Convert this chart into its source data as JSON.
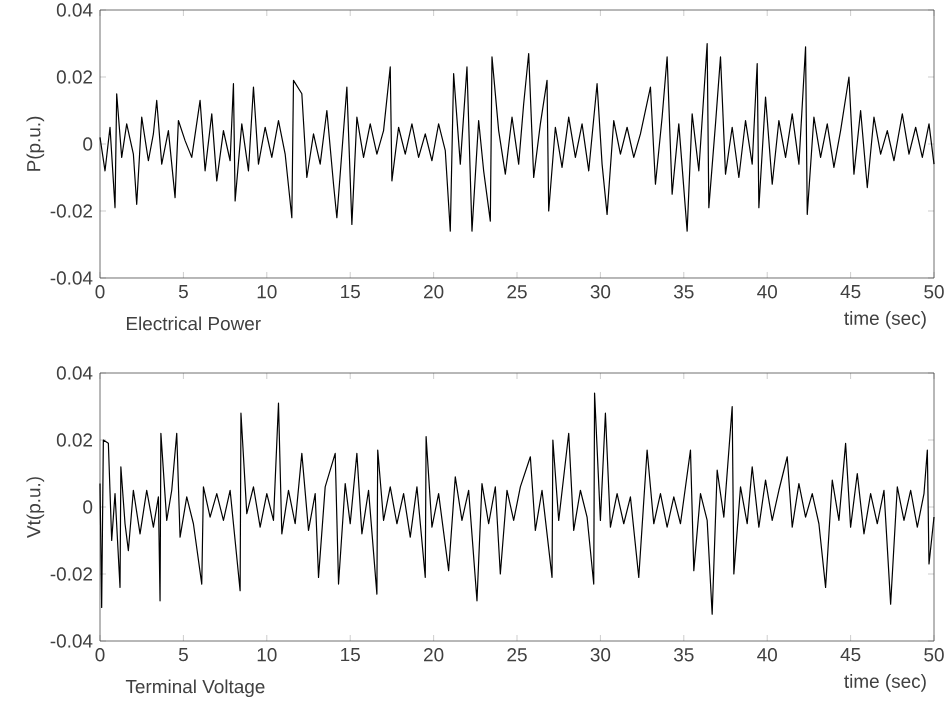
{
  "chart_data": [
    {
      "type": "line",
      "ylabel": "P(p.u.)",
      "xlabel": "time (sec)",
      "annotations": [
        "Electrical Power"
      ],
      "xlim": [
        0,
        50
      ],
      "ylim": [
        -0.04,
        0.04
      ],
      "xticks": [
        0,
        5,
        10,
        15,
        20,
        25,
        30,
        35,
        40,
        45,
        50
      ],
      "yticks": [
        -0.04,
        -0.02,
        0,
        0.02,
        0.04
      ],
      "series": [
        {
          "color": "#000000",
          "x": [
            0,
            0.3,
            0.6,
            0.9,
            1.0,
            1.3,
            1.6,
            2.0,
            2.2,
            2.5,
            2.9,
            3.2,
            3.4,
            3.7,
            4.1,
            4.5,
            4.7,
            5.1,
            5.5,
            6.0,
            6.3,
            6.7,
            7.0,
            7.4,
            7.8,
            8.0,
            8.1,
            8.5,
            8.9,
            9.2,
            9.5,
            9.9,
            10.3,
            10.7,
            11.1,
            11.5,
            11.6,
            12.1,
            12.4,
            12.8,
            13.2,
            13.6,
            14.0,
            14.2,
            14.8,
            15.1,
            15.4,
            15.8,
            16.2,
            16.6,
            17.0,
            17.4,
            17.5,
            17.9,
            18.3,
            18.7,
            19.1,
            19.5,
            19.9,
            20.3,
            20.7,
            21.0,
            21.2,
            21.6,
            22.0,
            22.3,
            22.7,
            23.0,
            23.4,
            23.5,
            23.9,
            24.3,
            24.7,
            25.1,
            25.4,
            25.7,
            26.0,
            26.4,
            26.8,
            26.9,
            27.3,
            27.7,
            28.1,
            28.5,
            28.9,
            29.3,
            29.8,
            30.1,
            30.4,
            30.8,
            31.2,
            31.6,
            32.0,
            32.4,
            33.0,
            33.3,
            33.7,
            34.0,
            34.3,
            34.7,
            35.2,
            35.5,
            35.9,
            36.4,
            36.5,
            36.9,
            37.2,
            37.5,
            37.9,
            38.3,
            38.7,
            39.1,
            39.4,
            39.5,
            39.9,
            40.3,
            40.7,
            41.1,
            41.5,
            41.9,
            42.3,
            42.4,
            42.8,
            43.2,
            43.6,
            44.0,
            44.4,
            44.9,
            45.2,
            45.6,
            46.0,
            46.4,
            46.8,
            47.2,
            47.6,
            48.1,
            48.5,
            48.9,
            49.3,
            49.7,
            50
          ],
          "values": [
            0.002,
            -0.008,
            0.005,
            -0.019,
            0.015,
            -0.004,
            0.006,
            -0.003,
            -0.018,
            0.008,
            -0.005,
            0.003,
            0.013,
            -0.006,
            0.004,
            -0.016,
            0.007,
            0.001,
            -0.004,
            0.013,
            -0.008,
            0.009,
            -0.011,
            0.004,
            -0.005,
            0.018,
            -0.017,
            0.006,
            -0.008,
            0.017,
            -0.006,
            0.005,
            -0.004,
            0.007,
            -0.003,
            -0.022,
            0.019,
            0.015,
            -0.01,
            0.003,
            -0.006,
            0.01,
            -0.012,
            -0.022,
            0.017,
            -0.024,
            0.008,
            -0.004,
            0.006,
            -0.003,
            0.004,
            0.023,
            -0.011,
            0.005,
            -0.003,
            0.006,
            -0.004,
            0.003,
            -0.005,
            0.006,
            -0.002,
            -0.026,
            0.021,
            -0.006,
            0.023,
            -0.026,
            0.007,
            -0.008,
            -0.023,
            0.026,
            0.004,
            -0.009,
            0.008,
            -0.006,
            0.012,
            0.027,
            -0.01,
            0.006,
            0.019,
            -0.02,
            0.005,
            -0.007,
            0.008,
            -0.004,
            0.006,
            -0.008,
            0.018,
            -0.006,
            -0.021,
            0.007,
            -0.003,
            0.005,
            -0.004,
            0.003,
            0.017,
            -0.012,
            0.008,
            0.026,
            -0.015,
            0.006,
            -0.026,
            0.009,
            -0.008,
            0.03,
            -0.019,
            0.006,
            0.026,
            -0.009,
            0.005,
            -0.01,
            0.007,
            -0.006,
            0.024,
            -0.019,
            0.014,
            -0.012,
            0.007,
            -0.004,
            0.009,
            -0.006,
            0.029,
            -0.021,
            0.008,
            -0.004,
            0.006,
            -0.007,
            0.004,
            0.02,
            -0.009,
            0.01,
            -0.013,
            0.008,
            -0.003,
            0.004,
            -0.005,
            0.009,
            -0.003,
            0.005,
            -0.004,
            0.006,
            -0.006
          ]
        }
      ]
    },
    {
      "type": "line",
      "ylabel": "Vt(p.u.)",
      "xlabel": "time (sec)",
      "annotations": [
        "Terminal Voltage"
      ],
      "xlim": [
        0,
        50
      ],
      "ylim": [
        -0.04,
        0.04
      ],
      "xticks": [
        0,
        5,
        10,
        15,
        20,
        25,
        30,
        35,
        40,
        45,
        50
      ],
      "yticks": [
        -0.04,
        -0.02,
        0,
        0.02,
        0.04
      ],
      "series": [
        {
          "color": "#000000",
          "x": [
            0,
            0.1,
            0.2,
            0.5,
            0.7,
            0.9,
            1.2,
            1.25,
            1.5,
            1.7,
            2.0,
            2.4,
            2.8,
            3.2,
            3.5,
            3.6,
            3.65,
            4.0,
            4.3,
            4.6,
            4.8,
            5.2,
            5.6,
            6.1,
            6.2,
            6.6,
            7.0,
            7.4,
            7.8,
            8.4,
            8.45,
            8.8,
            9.2,
            9.6,
            10.0,
            10.4,
            10.7,
            10.9,
            11.3,
            11.7,
            12.1,
            12.5,
            12.9,
            13.1,
            13.5,
            14.1,
            14.3,
            14.7,
            15.0,
            15.4,
            15.7,
            16.1,
            16.6,
            16.65,
            17.0,
            17.4,
            17.8,
            18.2,
            18.6,
            19.0,
            19.5,
            19.55,
            19.9,
            20.3,
            20.9,
            21.3,
            21.7,
            22.1,
            22.6,
            22.9,
            23.3,
            23.7,
            24.0,
            24.4,
            24.8,
            25.2,
            25.8,
            26.1,
            26.5,
            27.1,
            27.15,
            27.5,
            28.1,
            28.4,
            28.8,
            29.2,
            29.6,
            29.65,
            30.0,
            30.3,
            30.6,
            31.0,
            31.4,
            31.8,
            32.3,
            32.8,
            33.2,
            33.6,
            34.0,
            34.4,
            34.8,
            35.4,
            35.6,
            36.0,
            36.4,
            36.7,
            37.0,
            37.4,
            37.9,
            38.0,
            38.4,
            38.8,
            39.1,
            39.5,
            39.9,
            40.3,
            40.7,
            41.2,
            41.5,
            41.9,
            42.3,
            42.7,
            43.1,
            43.5,
            43.9,
            44.3,
            44.7,
            45.0,
            45.4,
            45.8,
            46.2,
            46.6,
            47.0,
            47.4,
            47.8,
            48.2,
            48.6,
            49.0,
            49.4,
            49.6,
            49.7,
            50
          ],
          "values": [
            0.007,
            -0.03,
            0.02,
            0.019,
            -0.01,
            0.004,
            -0.024,
            0.012,
            -0.005,
            -0.013,
            0.005,
            -0.008,
            0.005,
            -0.006,
            0.003,
            -0.028,
            0.022,
            -0.004,
            0.005,
            0.022,
            -0.009,
            0.003,
            -0.005,
            -0.023,
            0.006,
            -0.003,
            0.004,
            -0.004,
            0.005,
            -0.025,
            0.028,
            -0.002,
            0.006,
            -0.006,
            0.004,
            -0.004,
            0.031,
            -0.008,
            0.005,
            -0.005,
            0.016,
            -0.007,
            0.004,
            -0.021,
            0.006,
            0.016,
            -0.023,
            0.007,
            -0.005,
            0.016,
            -0.008,
            0.005,
            -0.026,
            0.017,
            -0.004,
            0.006,
            -0.005,
            0.004,
            -0.009,
            0.006,
            -0.021,
            0.021,
            -0.006,
            0.004,
            -0.019,
            0.009,
            -0.004,
            0.005,
            -0.028,
            0.007,
            -0.005,
            0.006,
            -0.02,
            0.005,
            -0.004,
            0.006,
            0.015,
            -0.007,
            0.005,
            -0.021,
            0.02,
            -0.004,
            0.022,
            -0.007,
            0.005,
            -0.003,
            -0.023,
            0.034,
            -0.004,
            0.028,
            -0.006,
            0.004,
            -0.005,
            0.003,
            -0.021,
            0.017,
            -0.005,
            0.004,
            -0.006,
            0.003,
            -0.005,
            0.017,
            -0.019,
            0.004,
            -0.004,
            -0.032,
            0.011,
            -0.003,
            0.03,
            -0.02,
            0.006,
            -0.005,
            0.012,
            -0.006,
            0.008,
            -0.004,
            0.005,
            0.015,
            -0.006,
            0.007,
            -0.003,
            0.004,
            -0.005,
            -0.024,
            0.008,
            -0.004,
            0.019,
            -0.006,
            0.01,
            -0.008,
            0.004,
            -0.005,
            0.005,
            -0.029,
            0.006,
            -0.004,
            0.005,
            -0.006,
            0.004,
            0.017,
            -0.017,
            -0.003
          ]
        }
      ]
    }
  ]
}
